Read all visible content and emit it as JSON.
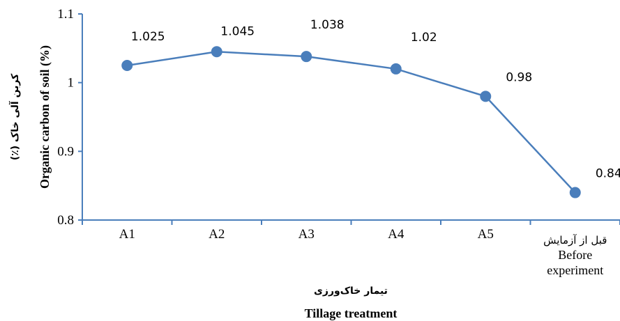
{
  "chart_data": {
    "type": "line",
    "categories": [
      "A1",
      "A2",
      "A3",
      "A4",
      "A5",
      "قبل از آزمایش Before experiment"
    ],
    "category_labels": [
      {
        "lines": [
          "A1"
        ]
      },
      {
        "lines": [
          "A2"
        ]
      },
      {
        "lines": [
          "A3"
        ]
      },
      {
        "lines": [
          "A4"
        ]
      },
      {
        "lines": [
          "A5"
        ]
      },
      {
        "lines": [
          "قبل از آزمایش",
          "Before",
          "experiment"
        ]
      }
    ],
    "series": [
      {
        "values": [
          1.025,
          1.045,
          1.038,
          1.02,
          0.98,
          0.84
        ]
      }
    ],
    "data_labels": [
      "1.025",
      "1.045",
      "1.038",
      "1.02",
      "0.98",
      "0.84"
    ],
    "y_ticks": [
      "0.8",
      "0.9",
      "1",
      "1.1"
    ],
    "y_tick_values": [
      0.8,
      0.9,
      1.0,
      1.1
    ],
    "ylim": [
      0.8,
      1.1
    ],
    "ylabel": "Organic carbon of soil (%)",
    "ylabel_fa": "کربن آلی خاک (٪)",
    "xlabel": "Tillage treatment",
    "xlabel_fa": "تیمار خاک‌ورزی",
    "grid": false,
    "line_color": "#4a7ebb",
    "marker_color": "#4a7ebb",
    "axis_color": "#4a7ebb"
  }
}
